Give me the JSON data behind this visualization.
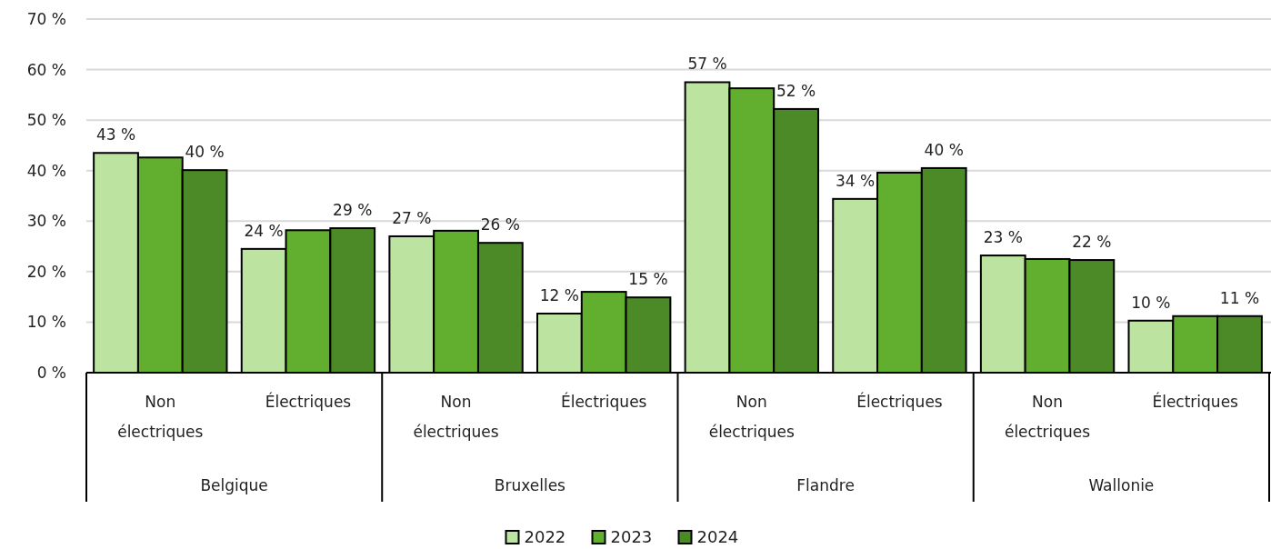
{
  "chart_data": {
    "type": "bar",
    "categories": [
      "Non électriques",
      "Électriques",
      "Non électriques",
      "Électriques",
      "Non électriques",
      "Électriques",
      "Non électriques",
      "Électriques"
    ],
    "annotations": [
      "Belgique",
      "Bruxelles",
      "Flandre",
      "Wallonie"
    ],
    "series": [
      {
        "name": "2022",
        "color": "#bde3a0",
        "values": [
          43.5,
          24.5,
          27.0,
          11.7,
          57.5,
          34.4,
          23.2,
          10.3
        ],
        "value_labels": [
          "43 %",
          "24 %",
          "27 %",
          "12 %",
          "57 %",
          "34 %",
          "23 %",
          "10 %"
        ]
      },
      {
        "name": "2023",
        "color": "#62ae2f",
        "values": [
          42.6,
          28.2,
          28.1,
          16.0,
          56.3,
          39.6,
          22.5,
          11.2
        ],
        "value_labels": [
          null,
          null,
          null,
          null,
          null,
          null,
          null,
          null
        ]
      },
      {
        "name": "2024",
        "color": "#4b8a27",
        "values": [
          40.1,
          28.6,
          25.7,
          14.9,
          52.2,
          40.5,
          22.3,
          11.2
        ],
        "value_labels": [
          "40 %",
          "29 %",
          "26 %",
          "15 %",
          "52 %",
          "40 %",
          "22 %",
          "11 %"
        ]
      }
    ],
    "ylim": [
      0,
      70
    ],
    "yticks": [
      {
        "value": 0,
        "label": "0 %"
      },
      {
        "value": 10,
        "label": "10 %"
      },
      {
        "value": 20,
        "label": "20 %"
      },
      {
        "value": 30,
        "label": "30 %"
      },
      {
        "value": 40,
        "label": "40 %"
      },
      {
        "value": 50,
        "label": "50 %"
      },
      {
        "value": 60,
        "label": "60 %"
      },
      {
        "value": 70,
        "label": "70 %"
      }
    ],
    "grid": "y",
    "legend": "bottom"
  }
}
